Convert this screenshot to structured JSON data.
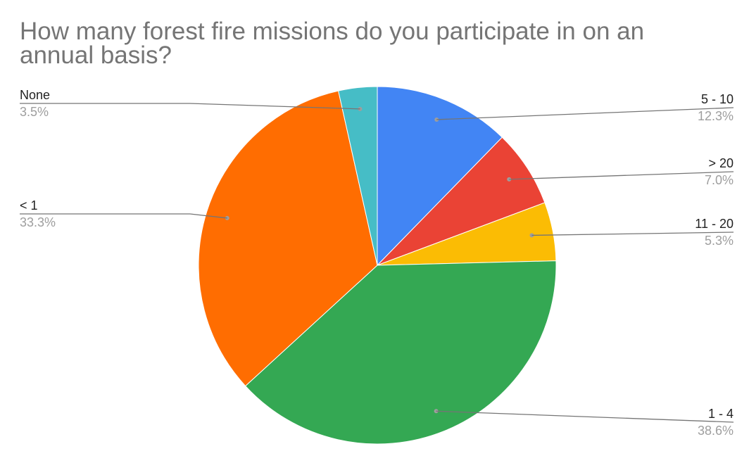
{
  "chart_data": {
    "type": "pie",
    "title": "How many forest fire missions do you participate in on an annual basis?",
    "start_angle": "top (12 o'clock), clockwise",
    "legend": "labels with leader lines",
    "slices": [
      {
        "label": "5 - 10",
        "percent_label": "12.3%",
        "value": 12.3,
        "color": "#4285F4"
      },
      {
        "label": "> 20",
        "percent_label": "7.0%",
        "value": 7.0,
        "color": "#EA4335"
      },
      {
        "label": "11 - 20",
        "percent_label": "5.3%",
        "value": 5.3,
        "color": "#FBBC04"
      },
      {
        "label": "1 - 4",
        "percent_label": "38.6%",
        "value": 38.6,
        "color": "#34A853"
      },
      {
        "label": "< 1",
        "percent_label": "33.3%",
        "value": 33.3,
        "color": "#FF6D01"
      },
      {
        "label": "None",
        "percent_label": "3.5%",
        "value": 3.5,
        "color": "#46BDC6"
      }
    ]
  }
}
